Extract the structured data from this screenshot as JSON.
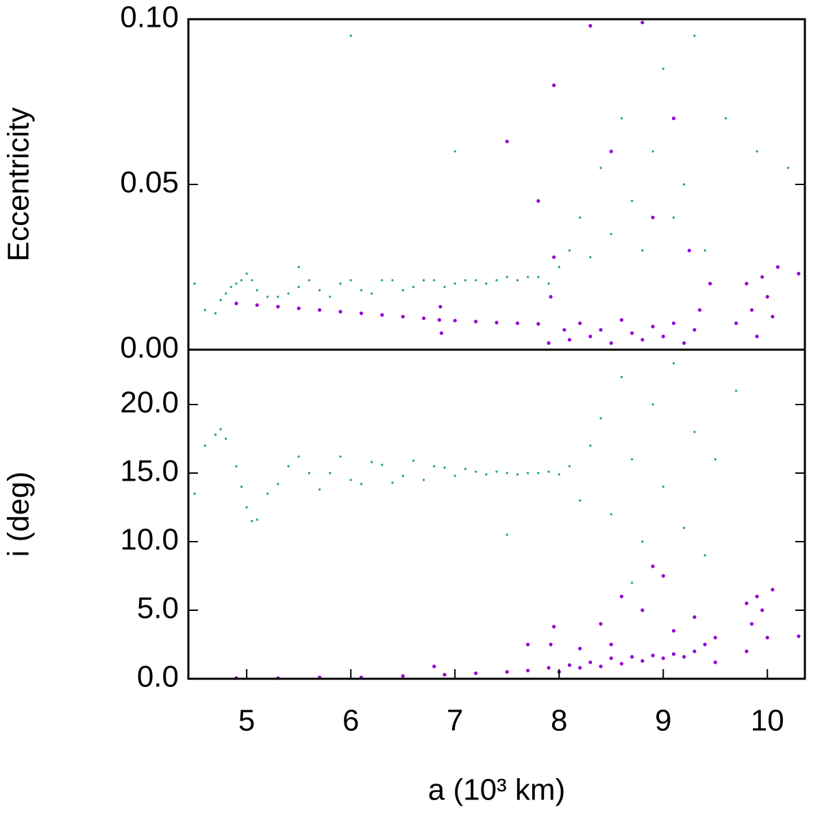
{
  "chart_data": [
    {
      "type": "scatter",
      "ylabel": "Eccentricity",
      "xlim": [
        4.44,
        10.36
      ],
      "ylim": [
        0,
        0.1
      ],
      "yticks": [
        {
          "value": 0,
          "label": "0.00"
        },
        {
          "value": 0.05,
          "label": "0.05"
        },
        {
          "value": 0.1,
          "label": "0.10"
        }
      ],
      "series": [
        {
          "color": "#1a9e77",
          "size": 1.6,
          "x": [
            4.6,
            4.7,
            4.75,
            4.8,
            4.85,
            4.9,
            4.95,
            5.0,
            5.05,
            5.1,
            5.2,
            5.3,
            5.4,
            5.5,
            5.6,
            5.7,
            5.8,
            5.9,
            6.0,
            6.1,
            6.2,
            6.3,
            6.4,
            6.5,
            6.6,
            6.7,
            6.8,
            6.9,
            7.0,
            7.1,
            7.2,
            7.3,
            7.4,
            7.5,
            7.6,
            7.7,
            7.8,
            7.9,
            8.0,
            8.1,
            8.2,
            8.3,
            8.4,
            8.5,
            8.6,
            8.7,
            8.8,
            8.9,
            9.0,
            9.1,
            9.2,
            9.3,
            9.4,
            9.6,
            9.9,
            10.2,
            4.5,
            5.5,
            7.0,
            6.0
          ],
          "values": [
            0.012,
            0.011,
            0.015,
            0.017,
            0.019,
            0.02,
            0.021,
            0.023,
            0.021,
            0.018,
            0.016,
            0.016,
            0.017,
            0.019,
            0.021,
            0.018,
            0.016,
            0.02,
            0.021,
            0.018,
            0.017,
            0.021,
            0.021,
            0.018,
            0.019,
            0.021,
            0.021,
            0.019,
            0.02,
            0.021,
            0.021,
            0.02,
            0.021,
            0.022,
            0.021,
            0.022,
            0.022,
            0.02,
            0.025,
            0.03,
            0.04,
            0.028,
            0.055,
            0.035,
            0.07,
            0.045,
            0.03,
            0.06,
            0.085,
            0.04,
            0.05,
            0.095,
            0.03,
            0.07,
            0.06,
            0.055,
            0.02,
            0.025,
            0.06,
            0.095
          ]
        },
        {
          "color": "#9400d3",
          "size": 2.6,
          "x": [
            4.9,
            5.1,
            5.3,
            5.5,
            5.7,
            5.9,
            6.1,
            6.3,
            6.5,
            6.7,
            6.85,
            6.86,
            6.87,
            7.0,
            7.2,
            7.4,
            7.6,
            7.8,
            7.9,
            7.92,
            7.95,
            8.05,
            8.1,
            8.2,
            8.3,
            8.4,
            8.5,
            8.6,
            8.7,
            8.8,
            8.9,
            9.0,
            9.1,
            9.2,
            9.3,
            9.35,
            9.45,
            7.8,
            7.95,
            8.3,
            8.5,
            8.8,
            8.9,
            9.1,
            9.25,
            9.7,
            9.8,
            9.85,
            9.9,
            9.95,
            10.0,
            10.05,
            10.1,
            10.3,
            7.5
          ],
          "values": [
            0.014,
            0.0135,
            0.013,
            0.0125,
            0.012,
            0.0115,
            0.011,
            0.0105,
            0.01,
            0.0095,
            0.009,
            0.013,
            0.005,
            0.0088,
            0.0085,
            0.0082,
            0.008,
            0.0078,
            0.002,
            0.016,
            0.028,
            0.006,
            0.003,
            0.008,
            0.004,
            0.006,
            0.002,
            0.009,
            0.005,
            0.003,
            0.007,
            0.004,
            0.008,
            0.002,
            0.006,
            0.012,
            0.02,
            0.045,
            0.08,
            0.098,
            0.06,
            0.099,
            0.04,
            0.07,
            0.03,
            0.008,
            0.02,
            0.012,
            0.004,
            0.022,
            0.016,
            0.01,
            0.025,
            0.023,
            0.063
          ]
        }
      ]
    },
    {
      "type": "scatter",
      "ylabel": "i (deg)",
      "xlabel": "a (10³ km)",
      "xlim": [
        4.44,
        10.36
      ],
      "ylim": [
        0,
        24
      ],
      "xticks": [
        5,
        6,
        7,
        8,
        9,
        10
      ],
      "yticks": [
        {
          "value": 0,
          "label": "0.0"
        },
        {
          "value": 5,
          "label": "5.0"
        },
        {
          "value": 10,
          "label": "10.0"
        },
        {
          "value": 15,
          "label": "15.0"
        },
        {
          "value": 20,
          "label": "20.0"
        }
      ],
      "series": [
        {
          "color": "#1a9e77",
          "size": 1.6,
          "x": [
            4.5,
            4.6,
            4.7,
            4.75,
            4.8,
            4.9,
            4.95,
            5.0,
            5.05,
            5.1,
            5.2,
            5.3,
            5.4,
            5.5,
            5.6,
            5.7,
            5.8,
            5.9,
            6.0,
            6.1,
            6.2,
            6.3,
            6.4,
            6.5,
            6.6,
            6.7,
            6.8,
            6.9,
            7.0,
            7.1,
            7.2,
            7.3,
            7.4,
            7.5,
            7.6,
            7.7,
            7.8,
            7.9,
            8.0,
            8.1,
            8.2,
            8.3,
            8.4,
            8.5,
            8.6,
            8.7,
            8.8,
            8.9,
            9.0,
            9.1,
            9.2,
            9.3,
            9.4,
            9.5,
            9.7,
            8.7,
            7.5
          ],
          "values": [
            13.5,
            17,
            17.8,
            18.2,
            17.5,
            15.5,
            14,
            12.5,
            11.5,
            11.6,
            13.5,
            14.2,
            15.5,
            16.2,
            15,
            13.8,
            15,
            16.2,
            14.5,
            14.2,
            15.8,
            15.6,
            14.3,
            14.8,
            15.9,
            14.5,
            15.5,
            15.4,
            14.8,
            15.3,
            15.1,
            14.9,
            15.1,
            15.0,
            14.9,
            15.0,
            15.0,
            15.1,
            14.9,
            15.5,
            13,
            17,
            19,
            12,
            22,
            16,
            10,
            20,
            14,
            23,
            11,
            18,
            9,
            16,
            21,
            7,
            10.5
          ]
        },
        {
          "color": "#9400d3",
          "size": 2.6,
          "x": [
            4.9,
            5.3,
            5.7,
            6.1,
            6.5,
            6.9,
            7.2,
            7.5,
            7.7,
            7.9,
            7.92,
            7.95,
            8.0,
            8.1,
            8.2,
            8.3,
            8.4,
            8.5,
            8.6,
            8.7,
            8.8,
            8.9,
            9.0,
            9.1,
            9.2,
            9.3,
            9.4,
            9.5,
            8.4,
            8.6,
            8.8,
            9.0,
            9.1,
            8.9,
            8.5,
            9.3,
            9.5,
            9.8,
            9.85,
            9.9,
            9.95,
            10.0,
            10.05,
            9.8,
            10.3,
            6.8,
            7.7,
            8.2
          ],
          "values": [
            0.05,
            0.05,
            0.1,
            0.1,
            0.2,
            0.3,
            0.4,
            0.5,
            0.6,
            0.8,
            2.5,
            3.8,
            0.5,
            1,
            0.8,
            1.2,
            0.9,
            1.5,
            1.1,
            1.6,
            1.3,
            1.7,
            1.5,
            1.8,
            1.6,
            2,
            2.5,
            1.2,
            4,
            6,
            5,
            7.5,
            3.5,
            8.2,
            2.5,
            4.5,
            3,
            2,
            4,
            6,
            5,
            3,
            6.5,
            5.5,
            3.1,
            0.9,
            2.5,
            2.2
          ]
        }
      ]
    }
  ]
}
